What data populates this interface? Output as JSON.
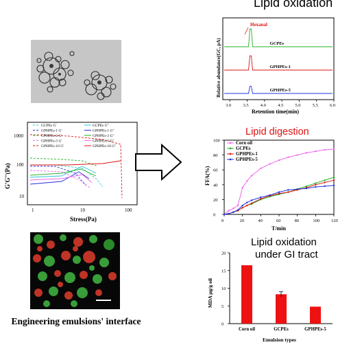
{
  "left": {
    "caption": "Engineering emulsions' interface",
    "rheology": {
      "ylabel": "G'G''(Pa)",
      "xlabel": "Stress(Pa)",
      "y_ticks": [
        "1000",
        "100",
        "10"
      ],
      "x_ticks": [
        "1",
        "10",
        "100"
      ],
      "legend": [
        {
          "label": "GCPEs G'",
          "color": "#2ec4d6",
          "dash": true
        },
        {
          "label": "GCPEs G''",
          "color": "#2ec4d6",
          "dash": false
        },
        {
          "label": "GPHPEs-1 G'",
          "color": "#2233dd",
          "dash": true
        },
        {
          "label": "GPHPEs-1 G''",
          "color": "#2233dd",
          "dash": false
        },
        {
          "label": "GPHPEs-2 G'",
          "color": "#22b522",
          "dash": true
        },
        {
          "label": "GPHPEs-2 G''",
          "color": "#22b522",
          "dash": false
        },
        {
          "label": "GPHPEs-5 G'",
          "color": "#ee66ee",
          "dash": true
        },
        {
          "label": "GPHPEs-5 G''",
          "color": "#ee66ee",
          "dash": false
        },
        {
          "label": "GPHPEs-10 G'",
          "color": "#dd1111",
          "dash": true
        },
        {
          "label": "GPHPEs-10 G''",
          "color": "#dd1111",
          "dash": false
        }
      ]
    }
  },
  "right": {
    "oxidation": {
      "title": "Lipid oxidation",
      "peak_label": "Hexanal",
      "ylabel": "Relative abundance(GC, pA)",
      "xlabel": "Retention time(min)",
      "x_ticks": [
        "3.0",
        "3.5",
        "4.0",
        "4.5",
        "5.0",
        "5.5",
        "6.0"
      ],
      "traces": [
        {
          "label": "GCPEs",
          "color": "#22b522",
          "peak": 1.0
        },
        {
          "label": "GPHPEs-1",
          "color": "#dd1111",
          "peak": 0.8
        },
        {
          "label": "GPHPEs-5",
          "color": "#2233dd",
          "peak": 0.4
        }
      ]
    },
    "digestion": {
      "title": "Lipid digestion",
      "ylabel": "FFA(%)",
      "xlabel": "T/min",
      "y_ticks": [
        "0",
        "20",
        "40",
        "60",
        "80",
        "100"
      ],
      "x_ticks": [
        "0",
        "20",
        "40",
        "60",
        "80",
        "100",
        "120"
      ],
      "legend": [
        {
          "label": "Corn oil",
          "color": "#ee66ee"
        },
        {
          "label": "GCPEs",
          "color": "#22b522"
        },
        {
          "label": "GPHPEs-1",
          "color": "#dd1111"
        },
        {
          "label": "GPHPEs-5",
          "color": "#2233dd"
        }
      ]
    },
    "gi": {
      "title_line1": "Lipid oxidation",
      "title_line2": "under GI tract",
      "ylabel": "MDA μg/g oil",
      "xlabel": "Emulsion types",
      "y_ticks": [
        "0",
        "5",
        "10",
        "15",
        "20"
      ],
      "bar_color": "#ee1111"
    }
  },
  "chart_data": [
    {
      "type": "line",
      "title": "Lipid digestion",
      "xlabel": "T/min",
      "ylabel": "FFA(%)",
      "xlim": [
        0,
        120
      ],
      "ylim": [
        0,
        100
      ],
      "series": [
        {
          "name": "Corn oil",
          "x": [
            0,
            5,
            10,
            15,
            20,
            25,
            30,
            40,
            50,
            60,
            70,
            80,
            90,
            100,
            110,
            120
          ],
          "values": [
            0,
            5,
            8,
            12,
            36,
            45,
            52,
            62,
            68,
            73,
            77,
            80,
            83,
            85,
            87,
            88
          ]
        },
        {
          "name": "GCPEs",
          "x": [
            0,
            5,
            10,
            15,
            20,
            25,
            30,
            40,
            50,
            60,
            70,
            80,
            90,
            100,
            110,
            120
          ],
          "values": [
            0,
            1,
            3,
            5,
            9,
            12,
            14,
            20,
            24,
            27,
            30,
            34,
            38,
            42,
            46,
            50
          ]
        },
        {
          "name": "GPHPEs-1",
          "x": [
            0,
            5,
            10,
            15,
            20,
            25,
            30,
            40,
            50,
            60,
            70,
            80,
            90,
            100,
            110,
            120
          ],
          "values": [
            0,
            1,
            3,
            5,
            9,
            12,
            15,
            21,
            25,
            28,
            30,
            33,
            36,
            40,
            43,
            46
          ]
        },
        {
          "name": "GPHPEs-5",
          "x": [
            0,
            5,
            10,
            15,
            20,
            25,
            30,
            40,
            50,
            60,
            70,
            80,
            90,
            100,
            110,
            120
          ],
          "values": [
            0,
            1,
            3,
            6,
            12,
            16,
            19,
            23,
            26,
            30,
            33,
            34,
            35,
            37,
            38,
            39
          ]
        }
      ]
    },
    {
      "type": "bar",
      "title": "Lipid oxidation under GI tract",
      "xlabel": "Emulsion types",
      "ylabel": "MDA μg/g oil",
      "ylim": [
        0,
        20
      ],
      "categories": [
        "Corn oil",
        "GCPEs",
        "GPHPEs-5"
      ],
      "values": [
        16.5,
        8.3,
        4.8
      ],
      "errors": [
        0,
        0.7,
        0
      ]
    }
  ]
}
